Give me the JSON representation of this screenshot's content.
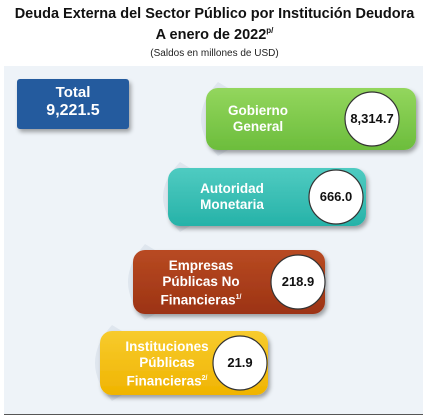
{
  "header": {
    "title_line1": "Deuda Externa del Sector Público por Institución Deudora",
    "title_line2": "A enero de 2022",
    "title_sup": "p/",
    "subtitle": "(Saldos en millones de USD)"
  },
  "total": {
    "label": "Total",
    "value": "9,221.5"
  },
  "chart_data": {
    "type": "bar",
    "title": "Deuda Externa del Sector Público por Institución Deudora",
    "subtitle": "(Saldos en millones de USD)",
    "categories": [
      "Gobierno General",
      "Autoridad Monetaria",
      "Empresas Públicas No Financieras",
      "Instituciones Públicas Financieras"
    ],
    "values": [
      8314.7,
      666.0,
      218.9,
      21.9
    ],
    "value_labels": [
      "8,314.7",
      "666.0",
      "218.9",
      "21.9"
    ],
    "total": 9221.5,
    "bars": [
      {
        "lines": [
          "Gobierno",
          "General"
        ],
        "sup": "",
        "value_label": "8,314.7",
        "color": "#6cbd3c",
        "color_light": "#93d65d"
      },
      {
        "lines": [
          "Autoridad",
          "Monetaria"
        ],
        "sup": "",
        "value_label": "666.0",
        "color": "#26b2a8",
        "color_light": "#4fcbc1"
      },
      {
        "lines": [
          "Empresas",
          "Públicas No",
          "Financieras"
        ],
        "sup": "1/",
        "value_label": "218.9",
        "color": "#9c3314",
        "color_light": "#b84a22"
      },
      {
        "lines": [
          "Instituciones",
          "Públicas",
          "Financieras"
        ],
        "sup": "2/",
        "value_label": "21.9",
        "color": "#f0b400",
        "color_light": "#f7cb2e"
      }
    ]
  }
}
